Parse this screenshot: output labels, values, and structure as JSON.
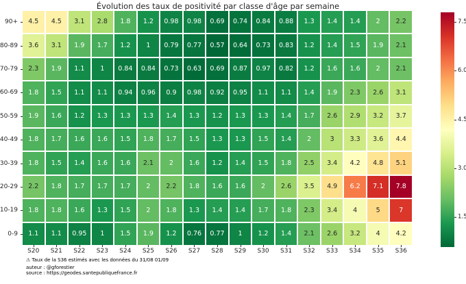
{
  "chart_data": {
    "type": "heatmap",
    "title": "Évolution des taux de positivité par classe d'âge par semaine",
    "x_categories": [
      "S20",
      "S21",
      "S22",
      "S23",
      "S24",
      "S25",
      "S26",
      "S27",
      "S28",
      "S29",
      "S30",
      "S31",
      "S32",
      "S33",
      "S34",
      "S35",
      "S36"
    ],
    "y_categories": [
      "90+",
      "80-89",
      "70-79",
      "60-69",
      "50-59",
      "40-49",
      "30-39",
      "20-29",
      "10-19",
      "0-9"
    ],
    "rows": [
      [
        "4.5",
        "4.5",
        "3.1",
        "2.8",
        "1.8",
        "1.2",
        "0.98",
        "0.98",
        "0.69",
        "0.74",
        "0.84",
        "0.88",
        "1.3",
        "1.4",
        "1.4",
        "2",
        "2.2"
      ],
      [
        "3.6",
        "3.1",
        "1.9",
        "1.7",
        "1.2",
        "1",
        "0.79",
        "0.77",
        "0.57",
        "0.64",
        "0.73",
        "0.83",
        "1.2",
        "1.4",
        "1.5",
        "1.9",
        "2.1"
      ],
      [
        "2.3",
        "1.9",
        "1.1",
        "1",
        "0.84",
        "0.84",
        "0.73",
        "0.63",
        "0.69",
        "0.87",
        "0.97",
        "0.82",
        "1.2",
        "1.6",
        "1.6",
        "2",
        "2.1"
      ],
      [
        "1.8",
        "1.5",
        "1.1",
        "1.1",
        "0.94",
        "0.96",
        "0.9",
        "0.98",
        "0.92",
        "0.95",
        "1.1",
        "1.1",
        "1.4",
        "1.9",
        "2.3",
        "2.6",
        "3.1"
      ],
      [
        "1.9",
        "1.6",
        "1.2",
        "1.3",
        "1.3",
        "1.3",
        "1.4",
        "1.3",
        "1.2",
        "1.3",
        "1.3",
        "1.4",
        "1.7",
        "2.6",
        "2.9",
        "3.2",
        "3.7"
      ],
      [
        "1.8",
        "1.7",
        "1.6",
        "1.6",
        "1.5",
        "1.8",
        "1.7",
        "1.5",
        "1.3",
        "1.3",
        "1.5",
        "1.4",
        "2",
        "3",
        "3.3",
        "3.6",
        "4.4"
      ],
      [
        "1.8",
        "1.5",
        "1.4",
        "1.6",
        "1.6",
        "2.1",
        "2",
        "1.6",
        "1.2",
        "1.4",
        "1.5",
        "1.8",
        "2.5",
        "3.4",
        "4.2",
        "4.8",
        "5.1"
      ],
      [
        "2.2",
        "1.8",
        "1.7",
        "1.7",
        "1.7",
        "2",
        "2.2",
        "1.8",
        "1.6",
        "1.6",
        "2",
        "2.6",
        "3.5",
        "4.9",
        "6.2",
        "7.1",
        "7.8"
      ],
      [
        "1.8",
        "1.8",
        "1.6",
        "1.3",
        "1.5",
        "2",
        "1.8",
        "1.3",
        "1.4",
        "1.4",
        "1.7",
        "1.8",
        "2.3",
        "3.4",
        "4",
        "5",
        "7"
      ],
      [
        "1.1",
        "1.1",
        "0.95",
        "1",
        "1.5",
        "1.9",
        "1.2",
        "0.76",
        "0.77",
        "1",
        "1.2",
        "1.4",
        "2.1",
        "2.6",
        "3.2",
        "4",
        "4.2"
      ]
    ],
    "vmin": 0.57,
    "vmax": 7.8,
    "colormap": {
      "name": "RdYlGn_r",
      "stops": [
        "#a50026",
        "#d73027",
        "#f46d43",
        "#fdae61",
        "#fee08b",
        "#ffffbf",
        "#d9ef8b",
        "#a6d96a",
        "#66bd63",
        "#1a9850",
        "#006837"
      ]
    },
    "colorbar_ticks": [
      "7.5",
      "6.0",
      "4.5",
      "3.0",
      "1.5"
    ],
    "legend_position": "colorbar-right",
    "grid": "white-cell-borders",
    "colors": {
      "background": "#ffffff",
      "gridline": "#ffffff",
      "annotation_dark": "#262626",
      "annotation_light": "#ffffff",
      "tick": "#262626"
    }
  },
  "footer": {
    "warning_icon": "⚠",
    "note": "Taux de la S36 estimés avec les données du 31/08 01/09",
    "author": "auteur : @gforestier",
    "source": "source : https://geodes.santepubliquefrance.fr"
  }
}
